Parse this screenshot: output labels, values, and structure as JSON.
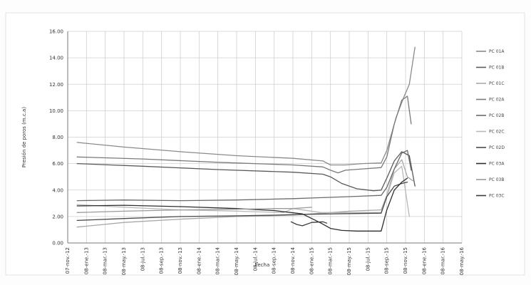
{
  "chart_data": {
    "type": "line",
    "title": "",
    "xlabel": "Fecha",
    "ylabel": "Presión de poros (m.c.a)",
    "ylim": [
      0,
      16
    ],
    "grid": true,
    "legend_position": "right",
    "y_ticks": [
      "0.00",
      "2.00",
      "4.00",
      "6.00",
      "8.00",
      "10.00",
      "12.00",
      "14.00",
      "16.00"
    ],
    "x_ticks": [
      "07-nov.-12",
      "08-ene.-13",
      "08-mar.-13",
      "08-may.-13",
      "08-jul.-13",
      "08-sep.-13",
      "08-nov.-13",
      "08-ene.-14",
      "08-mar.-14",
      "08-may.-14",
      "08-jul.-14",
      "08-sep.-14",
      "08-nov.-14",
      "08-ene.-15",
      "08-mar.-15",
      "08-may.-15",
      "08-jul.-15",
      "08-sep.-15",
      "08-nov.-15",
      "08-ene.-16",
      "08-mar.-16",
      "08-may.-16"
    ],
    "series": [
      {
        "name": "PC 01A",
        "color": "#8a8a8a",
        "points": [
          [
            0.5,
            7.6
          ],
          [
            3,
            7.25
          ],
          [
            6,
            6.9
          ],
          [
            9,
            6.6
          ],
          [
            12,
            6.4
          ],
          [
            13.6,
            6.2
          ],
          [
            14,
            5.9
          ],
          [
            14.8,
            5.9
          ],
          [
            15.7,
            6.0
          ],
          [
            16.7,
            6.05
          ],
          [
            17.0,
            7.0
          ],
          [
            17.5,
            9.5
          ],
          [
            17.9,
            11.0
          ],
          [
            18.2,
            12.0
          ],
          [
            18.5,
            14.8
          ]
        ]
      },
      {
        "name": "PC 01B",
        "color": "#5a5a5a",
        "points": [
          [
            0.5,
            6.0
          ],
          [
            4,
            5.8
          ],
          [
            8,
            5.55
          ],
          [
            12,
            5.35
          ],
          [
            13.6,
            5.2
          ],
          [
            14.0,
            5.0
          ],
          [
            14.6,
            4.5
          ],
          [
            15.4,
            4.1
          ],
          [
            16.3,
            3.95
          ],
          [
            16.7,
            4.0
          ],
          [
            17.0,
            4.9
          ],
          [
            17.4,
            6.2
          ],
          [
            17.8,
            6.9
          ],
          [
            18.2,
            6.6
          ],
          [
            18.5,
            4.3
          ]
        ]
      },
      {
        "name": "PC 01C",
        "color": "#a8a8a8",
        "points": [
          [
            0.5,
            1.2
          ],
          [
            3,
            1.55
          ],
          [
            6,
            1.8
          ],
          [
            9,
            2.0
          ],
          [
            12,
            2.1
          ],
          [
            13,
            2.2
          ],
          [
            15,
            2.4
          ],
          [
            16.7,
            2.5
          ],
          [
            17.0,
            3.6
          ],
          [
            17.4,
            5.6
          ],
          [
            17.8,
            6.3
          ],
          [
            18.1,
            5.0
          ],
          [
            18.4,
            4.7
          ]
        ]
      },
      {
        "name": "PC 02A",
        "color": "#7a7a7a",
        "points": [
          [
            0.5,
            6.5
          ],
          [
            4,
            6.35
          ],
          [
            8,
            6.1
          ],
          [
            12,
            5.9
          ],
          [
            13.6,
            5.75
          ],
          [
            14.0,
            5.5
          ],
          [
            14.4,
            5.3
          ],
          [
            14.8,
            5.5
          ],
          [
            15.7,
            5.6
          ],
          [
            16.7,
            5.7
          ],
          [
            17.0,
            6.5
          ],
          [
            17.4,
            9.0
          ],
          [
            17.8,
            10.8
          ],
          [
            18.1,
            11.1
          ],
          [
            18.3,
            9.0
          ]
        ]
      },
      {
        "name": "PC 02B",
        "color": "#6a6a6a",
        "points": [
          [
            0.5,
            3.2
          ],
          [
            3,
            3.25
          ],
          [
            6,
            3.2
          ],
          [
            9,
            3.25
          ],
          [
            12,
            3.35
          ],
          [
            13,
            3.4
          ],
          [
            15,
            3.5
          ],
          [
            16.7,
            3.6
          ],
          [
            17.0,
            4.2
          ],
          [
            17.4,
            5.6
          ],
          [
            17.8,
            6.8
          ],
          [
            18.1,
            7.0
          ],
          [
            18.3,
            5.5
          ]
        ]
      },
      {
        "name": "PC 02C",
        "color": "#b8b8b8",
        "points": [
          [
            0.5,
            2.9
          ],
          [
            3,
            2.7
          ],
          [
            6,
            2.5
          ],
          [
            9,
            2.4
          ],
          [
            11.5,
            2.3
          ],
          [
            12,
            2.6
          ],
          [
            13.5,
            2.3
          ],
          [
            15,
            2.3
          ],
          [
            16.7,
            2.3
          ],
          [
            17.0,
            3.5
          ],
          [
            17.4,
            5.3
          ],
          [
            17.8,
            5.8
          ],
          [
            18.2,
            2.0
          ]
        ]
      },
      {
        "name": "PC 02D",
        "color": "#4a4a4a",
        "points": [
          [
            0.5,
            1.7
          ],
          [
            3,
            1.85
          ],
          [
            6,
            2.0
          ],
          [
            9,
            2.05
          ],
          [
            11,
            2.1
          ],
          [
            12,
            2.15
          ],
          [
            14,
            2.2
          ],
          [
            16.7,
            2.25
          ],
          [
            17.0,
            3.5
          ],
          [
            17.4,
            4.3
          ],
          [
            17.8,
            4.5
          ],
          [
            18.1,
            4.6
          ]
        ]
      },
      {
        "name": "PC 03A",
        "color": "#2e2e2e",
        "points": [
          [
            0.5,
            2.8
          ],
          [
            3,
            2.85
          ],
          [
            6,
            2.75
          ],
          [
            9,
            2.6
          ],
          [
            11,
            2.45
          ],
          [
            12.5,
            2.2
          ],
          [
            13.5,
            1.5
          ],
          [
            14.0,
            1.1
          ],
          [
            14.6,
            0.95
          ],
          [
            15.4,
            0.9
          ],
          [
            16.7,
            0.9
          ],
          [
            17.0,
            2.5
          ],
          [
            17.4,
            4.0
          ],
          [
            17.8,
            4.6
          ],
          [
            18.1,
            4.9
          ]
        ]
      },
      {
        "name": "PC 03B",
        "color": "#9a9a9a",
        "points": [
          [
            0.5,
            2.3
          ],
          [
            3,
            2.4
          ],
          [
            6,
            2.5
          ],
          [
            9,
            2.55
          ],
          [
            11,
            2.6
          ],
          [
            12,
            2.6
          ],
          [
            13,
            2.7
          ]
        ]
      },
      {
        "name": "PC 03C",
        "color": "#3a3a3a",
        "points": [
          [
            11.9,
            1.6
          ],
          [
            12.2,
            1.4
          ],
          [
            12.5,
            1.3
          ],
          [
            13.0,
            1.55
          ],
          [
            13.6,
            1.6
          ],
          [
            13.8,
            1.5
          ]
        ]
      }
    ]
  }
}
